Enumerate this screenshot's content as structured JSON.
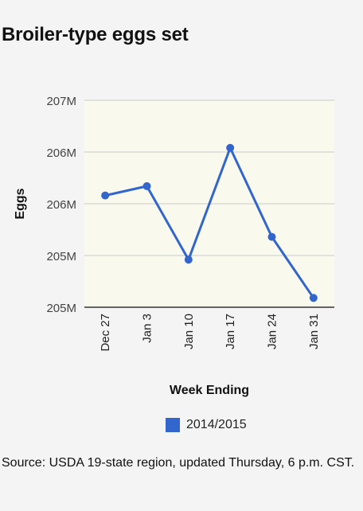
{
  "title": "Broiler-type eggs set",
  "source": "Source: USDA 19-state region, updated Thursday, 6 p.m. CST.",
  "colors": {
    "series": "#3366cc",
    "plot_bg": "#f9f9ee",
    "grid": "#cccccc",
    "axis": "#333333"
  },
  "chart_data": {
    "type": "line",
    "title": "Broiler-type eggs set",
    "xlabel": "Week Ending",
    "ylabel": "Eggs",
    "categories": [
      "Dec 27",
      "Jan 3",
      "Jan 10",
      "Jan 17",
      "Jan 24",
      "Jan 31"
    ],
    "yticks": [
      "207M",
      "206M",
      "206M",
      "205M",
      "205M"
    ],
    "ylim": [
      204.9,
      206.9
    ],
    "series": [
      {
        "name": "2014/2015",
        "values": [
          205.98,
          206.07,
          205.36,
          206.44,
          205.58,
          204.99
        ]
      }
    ],
    "legend_position": "bottom",
    "grid": true
  }
}
